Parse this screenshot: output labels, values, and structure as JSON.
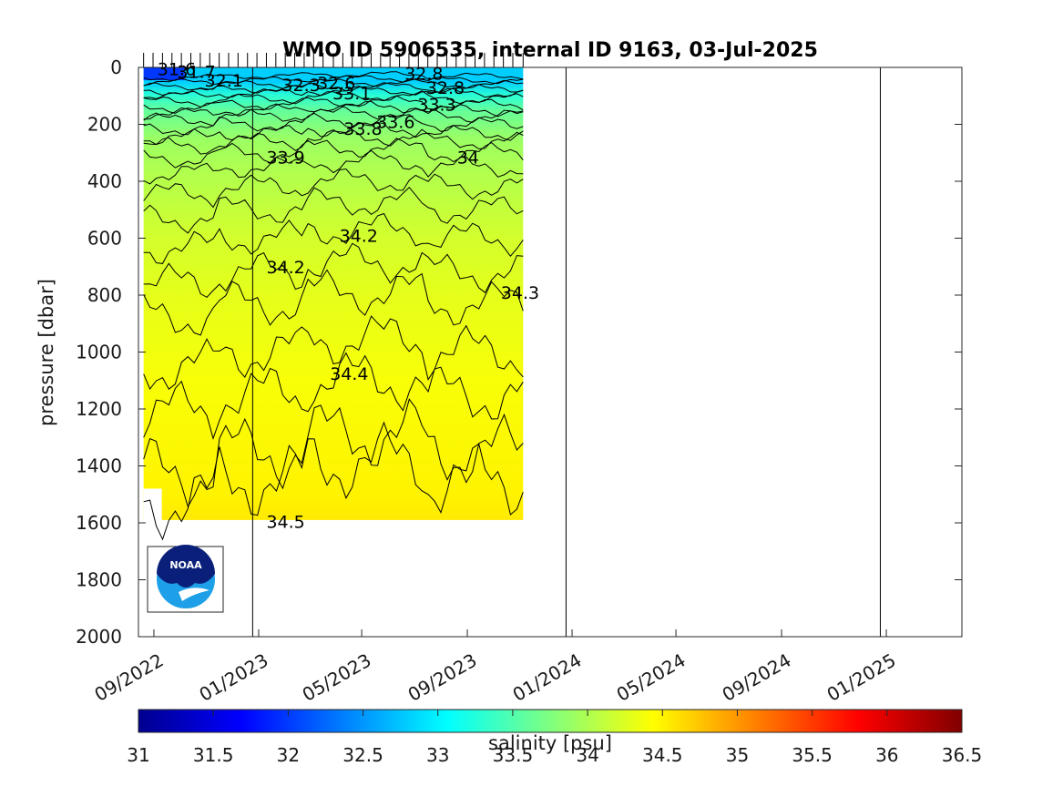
{
  "chart_data": {
    "type": "heatmap",
    "title": "WMO ID 5906535, internal ID 9163, 03-Jul-2025",
    "ylabel": "pressure [dbar]",
    "xlabel": "",
    "y_reversed": true,
    "ylim": [
      0,
      2000
    ],
    "xlim": [
      "2022-08-14",
      "2025-03-30"
    ],
    "y_ticks": [
      0,
      200,
      400,
      600,
      800,
      1000,
      1200,
      1400,
      1600,
      1800,
      2000
    ],
    "x_ticks": [
      "09/2022",
      "01/2023",
      "05/2023",
      "09/2023",
      "01/2024",
      "05/2024",
      "09/2024",
      "01/2025"
    ],
    "data_x_extent": [
      "2022-08-20",
      "2023-11-05"
    ],
    "data_y_extent": [
      0,
      1590
    ],
    "year_marker_dates": [
      "2022-12-25",
      "2023-12-25",
      "2024-12-25"
    ],
    "colorbar": {
      "label": "salinity [psu]",
      "min": 31,
      "max": 36.5,
      "colormap": "jet",
      "ticks": [
        "31",
        "31.5",
        "32",
        "32.5",
        "33",
        "33.5",
        "34",
        "34.5",
        "35",
        "35.5",
        "36",
        "36.5"
      ]
    },
    "contour_levels": [
      31.6,
      31.7,
      32.1,
      32.3,
      32.6,
      32.8,
      33.1,
      33.3,
      33.6,
      33.8,
      33.9,
      34,
      34.2,
      34.3,
      34.4,
      34.5
    ],
    "contour_labels": [
      "31.6",
      "31.7",
      "32.1",
      "32.3",
      "32.6",
      "32.8",
      "32.8",
      "33.1",
      "33.3",
      "33.6",
      "33.8",
      "33.9",
      "34",
      "34.2",
      "34.2",
      "34.3",
      "34.4",
      "34.5"
    ],
    "salinity_profile": [
      {
        "pressure": 0,
        "salinity": 32.8
      },
      {
        "pressure": 50,
        "salinity": 32.8
      },
      {
        "pressure": 100,
        "salinity": 33.3
      },
      {
        "pressure": 150,
        "salinity": 33.6
      },
      {
        "pressure": 250,
        "salinity": 33.9
      },
      {
        "pressure": 350,
        "salinity": 34.0
      },
      {
        "pressure": 600,
        "salinity": 34.2
      },
      {
        "pressure": 800,
        "salinity": 34.3
      },
      {
        "pressure": 1100,
        "salinity": 34.4
      },
      {
        "pressure": 1500,
        "salinity": 34.5
      }
    ]
  },
  "logo": {
    "text": "NOAA"
  }
}
